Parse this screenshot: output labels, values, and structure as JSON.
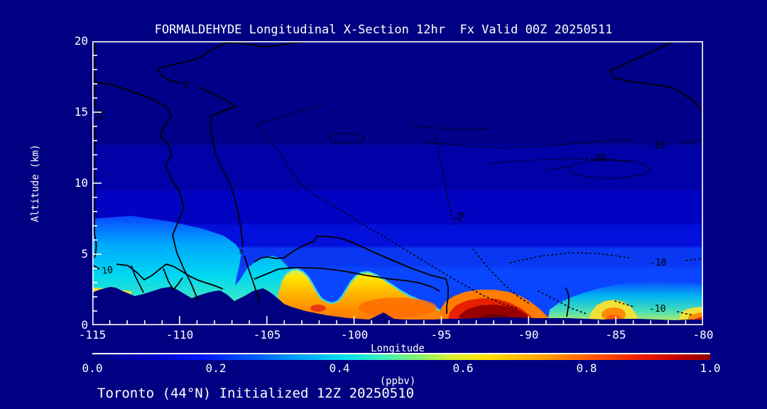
{
  "title": "FORMALDEHYDE Longitudinal X-Section 12hr  Fx Valid 00Z 20250511",
  "footer": "Toronto (44°N) Initialized 12Z 20250510",
  "axes": {
    "x_label": "Longitude",
    "y_label": "Altitude (km)",
    "x_ticks": [
      "-115",
      "-110",
      "-105",
      "-100",
      "-95",
      "-90",
      "-85",
      "-80"
    ],
    "y_ticks": [
      "20",
      "15",
      "10",
      "5",
      "0"
    ]
  },
  "colorbar": {
    "unit": "(ppbv)",
    "ticks": [
      "0.0",
      "0.2",
      "0.4",
      "0.6",
      "0.8",
      "1.0"
    ]
  },
  "contour_labels": {
    "zero": "0",
    "ten": "10",
    "minus10": "-10",
    "minus20": "-20"
  },
  "colors": {
    "background": "#000082",
    "frame": "#ffffff",
    "contour_line": "#000000",
    "field_low": "#000088",
    "field_mid": "#0a46ff",
    "field_cyan": "#00d8f0",
    "field_yellow": "#ffe000",
    "field_orange": "#ff8800",
    "field_red": "#e82000",
    "field_darkred": "#8c0000"
  },
  "chart_data": {
    "type": "heatmap",
    "title": "FORMALDEHYDE Longitudinal X-Section 12hr  Fx Valid 00Z 20250511",
    "xlabel": "Longitude",
    "ylabel": "Altitude (km)",
    "xlim": [
      -115,
      -80
    ],
    "ylim": [
      0,
      20
    ],
    "x_ticks": [
      -115,
      -110,
      -105,
      -100,
      -95,
      -90,
      -85,
      -80
    ],
    "y_ticks": [
      0,
      5,
      10,
      15,
      20
    ],
    "colorbar": {
      "min": 0.0,
      "max": 1.0,
      "ticks": [
        0.0,
        0.2,
        0.4,
        0.6,
        0.8,
        1.0
      ],
      "unit": "ppbv",
      "palette": "jet"
    },
    "contour_line_levels_labeled": [
      0,
      10,
      -10,
      -20
    ],
    "station": "Toronto (44N)",
    "initialized": "12Z 20250510",
    "valid": "00Z 20250511",
    "forecast_hour": 12,
    "terrain_profile_lon_km": [
      [
        -115,
        2.3
      ],
      [
        -113.7,
        2.65
      ],
      [
        -112.6,
        2.05
      ],
      [
        -110.6,
        2.7
      ],
      [
        -109.4,
        1.9
      ],
      [
        -108,
        2.45
      ],
      [
        -107,
        1.7
      ],
      [
        -105.9,
        2.6
      ],
      [
        -104.8,
        1.5
      ],
      [
        -103.5,
        1.05
      ],
      [
        -102,
        0.85
      ],
      [
        -100,
        0.55
      ],
      [
        -98,
        0.4
      ],
      [
        -96,
        0.4
      ],
      [
        -93,
        0.45
      ],
      [
        -90,
        0.5
      ],
      [
        -87,
        0.4
      ],
      [
        -84,
        0.45
      ],
      [
        -82,
        0.35
      ],
      [
        -80,
        0.4
      ]
    ],
    "surface_concentration_ppbv_by_lon": [
      [
        -115,
        0.45
      ],
      [
        -112,
        0.5
      ],
      [
        -110,
        0.5
      ],
      [
        -107,
        0.5
      ],
      [
        -105,
        0.55
      ],
      [
        -103,
        0.75
      ],
      [
        -101,
        0.7
      ],
      [
        -99,
        0.78
      ],
      [
        -97,
        0.78
      ],
      [
        -95,
        0.8
      ],
      [
        -93,
        0.88
      ],
      [
        -91,
        0.95
      ],
      [
        -89,
        1.0
      ],
      [
        -88,
        0.85
      ],
      [
        -87,
        0.5
      ],
      [
        -85.5,
        0.65
      ],
      [
        -84,
        0.5
      ],
      [
        -82,
        0.45
      ],
      [
        -80.5,
        0.85
      ]
    ],
    "features": [
      "Cyan/teal layer 0.35-0.5 ppbv over Rockies terrain between -115 and -102, up to ~6 km",
      "Yellow/orange boundary-layer plume 0.6-0.8 ppbv from -104 to -94 below ~3.5 km",
      "Dark-red surface maximum ~1.0 ppbv centered near -90 below ~1 km",
      "Secondary orange surface bump ~0.65 ppbv near -85.5",
      "Red surface wedge ~0.9 ppbv at the -80 edge",
      "Upper troposphere uniform low values (dark blue) with labeled contour lines 0, 10 (solid) and -10, -20 (dotted)"
    ]
  }
}
